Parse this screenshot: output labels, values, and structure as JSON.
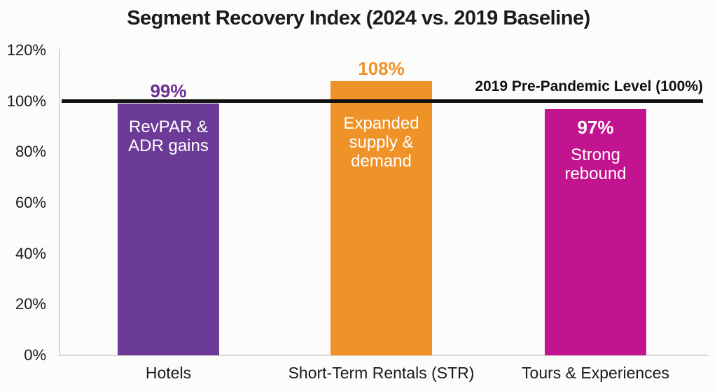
{
  "chart_data": {
    "type": "bar",
    "title": "Segment Recovery Index (2024 vs. 2019 Baseline)",
    "categories": [
      "Hotels",
      "Short-Term Rentals (STR)",
      "Tours & Experiences"
    ],
    "values": [
      99,
      108,
      97
    ],
    "ylim": [
      0,
      120
    ],
    "yticks": [
      0,
      20,
      40,
      60,
      80,
      100,
      120
    ],
    "ytick_labels": [
      "0%",
      "20%",
      "40%",
      "60%",
      "80%",
      "100%",
      "120%"
    ],
    "grid": false,
    "legend": false,
    "xlabel": "",
    "ylabel": "",
    "reference_line": {
      "value": 100,
      "label": "2019 Pre-Pandemic Level (100%)",
      "color": "#111111"
    },
    "segments": [
      {
        "category": "Hotels",
        "value": 99,
        "value_label": "99%",
        "value_label_placement": "above",
        "bar_color": "#6C3B97",
        "value_label_color": "#6E2F94",
        "annotation": "RevPAR &\nADR gains"
      },
      {
        "category": "Short-Term Rentals (STR)",
        "value": 108,
        "value_label": "108%",
        "value_label_placement": "above",
        "bar_color": "#EF9227",
        "value_label_color": "#EF9227",
        "annotation": "Expanded\nsupply &\ndemand"
      },
      {
        "category": "Tours & Experiences",
        "value": 97,
        "value_label": "97%",
        "value_label_placement": "inside",
        "bar_color": "#C1148E",
        "value_label_color": "#FFFFFF",
        "annotation": "Strong\nrebound"
      }
    ]
  }
}
